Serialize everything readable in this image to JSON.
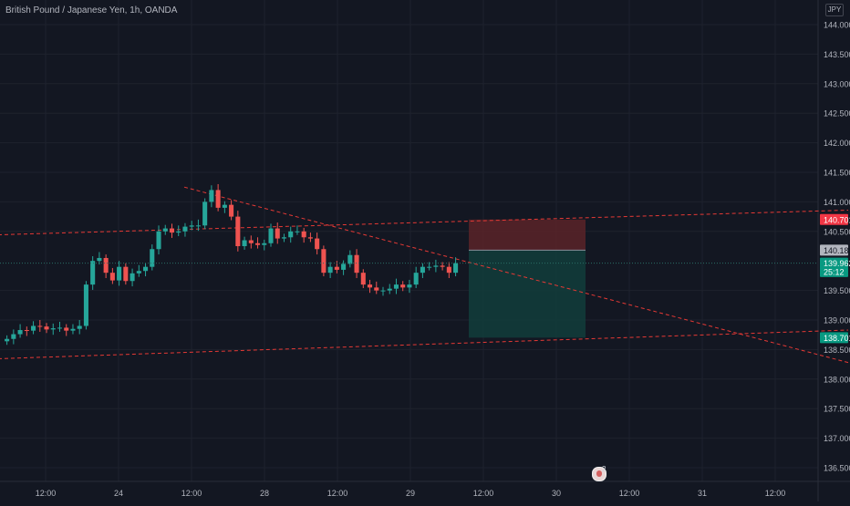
{
  "header": {
    "title": "British Pound / Japanese Yen, 1h, OANDA",
    "currency": "JPY"
  },
  "events": {
    "count": "2"
  },
  "price_axis": {
    "ticks": [
      "144.000",
      "143.500",
      "143.000",
      "142.500",
      "142.000",
      "141.500",
      "141.000",
      "140.500",
      "139.500",
      "139.000",
      "138.500",
      "138.000",
      "137.500",
      "137.000",
      "136.500"
    ],
    "labels": [
      {
        "text": "140.701",
        "value": 140.701,
        "bg": "#f23645",
        "fg": "#ffffff"
      },
      {
        "text": "140.182",
        "value": 140.182,
        "bg": "#b2b5be",
        "fg": "#131722"
      },
      {
        "text": "139.962",
        "value": 139.962,
        "bg": "#089981",
        "fg": "#ffffff"
      },
      {
        "text": "25:12",
        "value": 139.82,
        "bg": "#089981",
        "fg": "#ffffff"
      },
      {
        "text": "138.701",
        "value": 138.701,
        "bg": "#089981",
        "fg": "#ffffff"
      }
    ]
  },
  "time_axis": {
    "ticks": [
      "12:00",
      "24",
      "12:00",
      "28",
      "12:00",
      "29",
      "12:00",
      "30",
      "12:00",
      "31",
      "12:00"
    ],
    "tick_positions": [
      0.5,
      1,
      1.5,
      2,
      2.5,
      3,
      3.5,
      4,
      4.5,
      5,
      5.5
    ]
  },
  "colors": {
    "background": "#131722",
    "grid": "#1e222d",
    "up": "#26a69a",
    "down": "#ef5350",
    "trendline": "#e53935",
    "stop_zone": "#5a2328",
    "target_zone": "#123b3a",
    "axis_text": "#b2b5be"
  },
  "chart_data": {
    "type": "candlestick",
    "title": "British Pound / Japanese Yen, 1h, OANDA",
    "ylim": [
      136.35,
      144.2
    ],
    "bars": [
      138.68,
      138.76,
      138.83,
      138.82,
      138.9,
      138.89,
      138.84,
      138.86,
      138.87,
      138.82,
      138.85,
      138.9,
      139.6,
      140.0,
      140.05,
      139.8,
      139.67,
      139.9,
      139.66,
      139.79,
      139.83,
      139.9,
      140.2,
      140.5,
      140.55,
      140.48,
      140.5,
      140.58,
      140.6,
      140.6,
      141.0,
      141.2,
      140.9,
      140.95,
      140.75,
      140.25,
      140.35,
      140.3,
      140.27,
      140.3,
      140.55,
      140.38,
      140.4,
      140.5,
      140.5,
      140.4,
      140.38,
      140.2,
      139.8,
      139.9,
      139.85,
      139.95,
      140.1,
      139.8,
      139.6,
      139.55,
      139.5,
      139.5,
      139.53,
      139.6,
      139.55,
      139.6,
      139.8,
      139.9,
      139.9,
      139.92,
      139.9,
      139.8,
      139.962
    ],
    "trendlines": [
      {
        "from": [
          0.0,
          140.43
        ],
        "to": [
          6.0,
          140.86
        ]
      },
      {
        "from": [
          0.0,
          138.33
        ],
        "to": [
          6.0,
          138.83
        ]
      },
      {
        "from": [
          1.45,
          141.25
        ],
        "to": [
          6.0,
          138.28
        ]
      }
    ],
    "position": {
      "type": "short",
      "entry": 140.182,
      "stop": 140.701,
      "target": 138.701,
      "x_range": [
        3.4,
        4.2
      ]
    }
  }
}
